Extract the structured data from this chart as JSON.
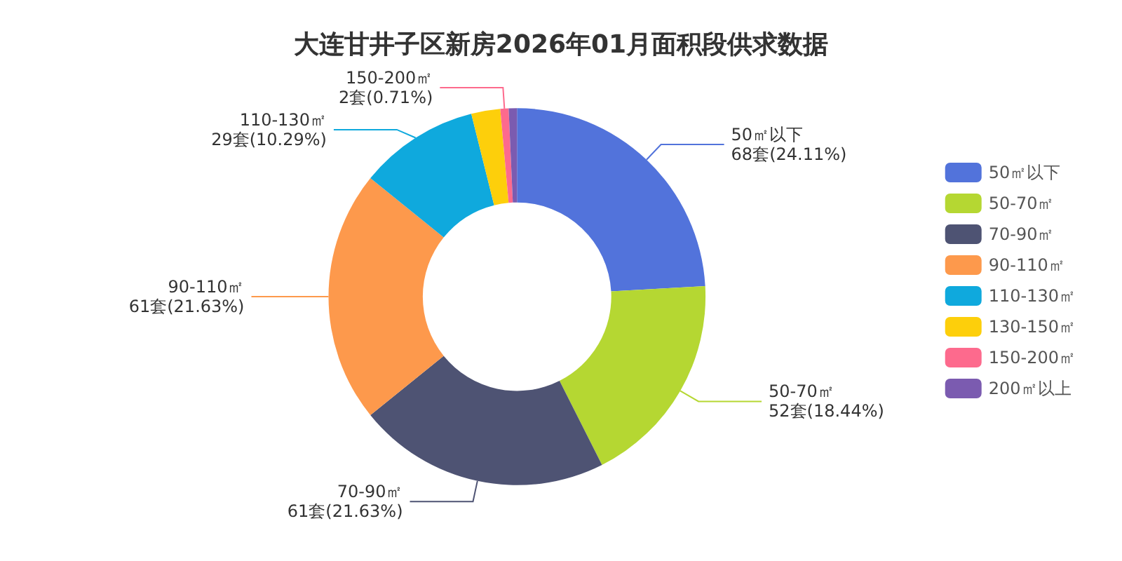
{
  "chart_data": {
    "type": "donut",
    "title": "大连甘井子区新房2026年01月面积段供求数据",
    "categories": [
      "50㎡以下",
      "50-70㎡",
      "70-90㎡",
      "90-110㎡",
      "110-130㎡",
      "130-150㎡",
      "150-200㎡",
      "200㎡以上"
    ],
    "values": [
      68,
      52,
      61,
      61,
      29,
      7,
      2,
      2
    ],
    "value_labels": [
      "68套(24.11%)",
      "52套(18.44%)",
      "61套(21.63%)",
      "61套(21.63%)",
      "29套(10.29%)",
      null,
      "2套(0.71%)",
      null
    ],
    "colors": [
      "#5273db",
      "#b5d732",
      "#4e5373",
      "#fd994c",
      "#0fa9dd",
      "#fdcf0b",
      "#fd6a8d",
      "#7b5bb0"
    ],
    "legend": "right"
  }
}
